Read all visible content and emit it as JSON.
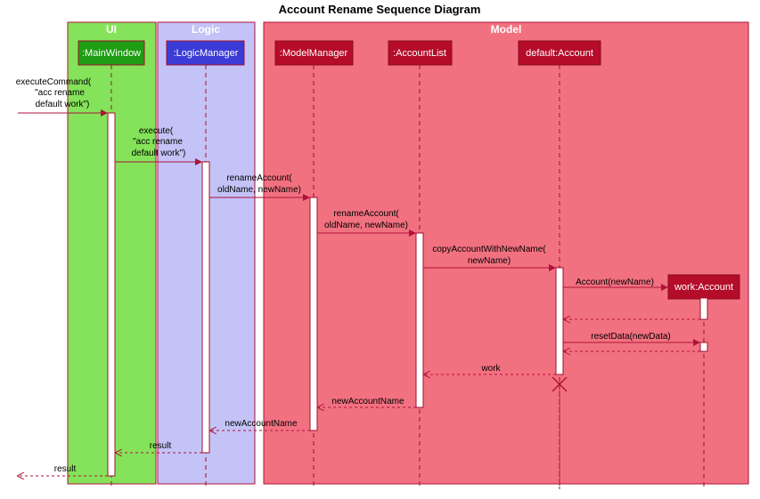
{
  "title": "Account Rename Sequence Diagram",
  "lanes": [
    {
      "label": "UI",
      "color": "#84e35a"
    },
    {
      "label": "Logic",
      "color": "#c3c3f7"
    },
    {
      "label": "Model",
      "color": "#f27180"
    }
  ],
  "participants": [
    {
      "label": ":MainWindow",
      "fill": "#1f9d14"
    },
    {
      "label": ":LogicManager",
      "fill": "#3b3bd6"
    },
    {
      "label": ":ModelManager",
      "fill": "#b50c2a"
    },
    {
      "label": ":AccountList",
      "fill": "#b50c2a"
    },
    {
      "label": "default:Account",
      "fill": "#b50c2a"
    },
    {
      "label": "work:Account",
      "fill": "#b50c2a"
    }
  ],
  "messages": {
    "m1": [
      "executeCommand(",
      "\"acc rename",
      "default work\")"
    ],
    "m2": [
      "execute(",
      "\"acc rename",
      "default work\")"
    ],
    "m3": [
      "renameAccount(",
      "oldName, newName)"
    ],
    "m4": [
      "renameAccount(",
      "oldName, newName)"
    ],
    "m5": [
      "copyAccountWithNewName(",
      "newName)"
    ],
    "m6": "Account(newName)",
    "m7": "resetData(newData)",
    "r1": "work",
    "r2": "newAccountName",
    "r3": "newAccountName",
    "r4": "result",
    "r5": "result"
  },
  "colors": {
    "arrow": "#b0123a",
    "lifeline": "#a0102c",
    "lane_border": "#b0123a"
  }
}
